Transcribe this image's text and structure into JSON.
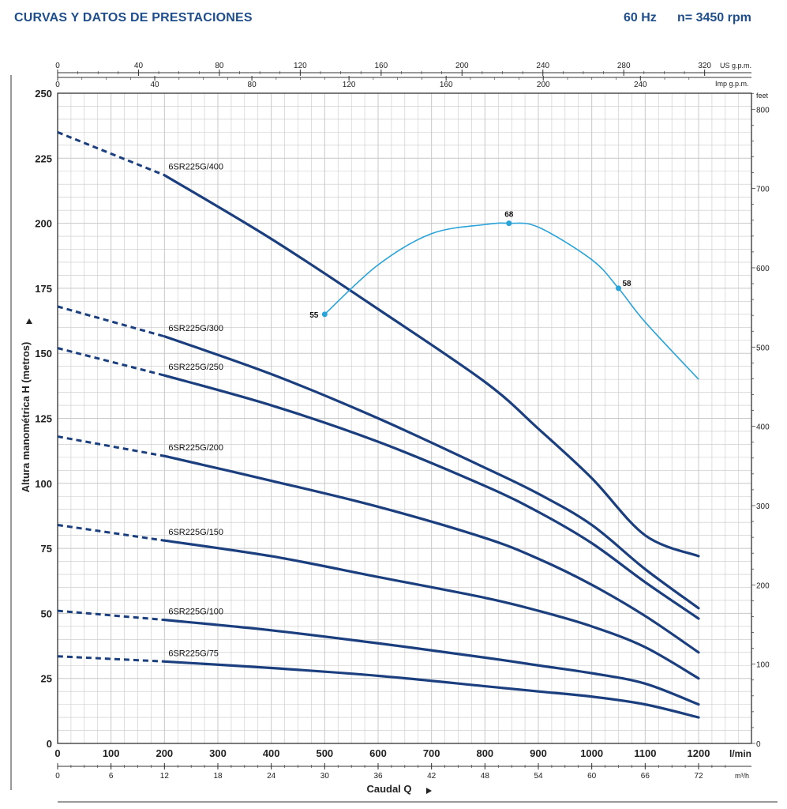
{
  "header": {
    "title": "CURVAS Y DATOS DE PRESTACIONES",
    "frequency": "60 Hz",
    "speed": "n= 3450 rpm"
  },
  "chart_data": {
    "type": "line",
    "ylabel": "Altura manométrica H (metros)",
    "xlabel": "Caudal Q",
    "x_unit": "l/min",
    "xlim": [
      0,
      1200
    ],
    "ylim": [
      0,
      250
    ],
    "x_ticks": [
      0,
      100,
      200,
      300,
      400,
      500,
      600,
      700,
      800,
      900,
      1000,
      1100,
      1200
    ],
    "y_ticks": [
      0,
      25,
      50,
      75,
      100,
      125,
      150,
      175,
      200,
      225,
      250
    ],
    "secondary_axes": {
      "top_us_gpm": {
        "unit": "US g.p.m.",
        "ticks": [
          0,
          40,
          80,
          120,
          160,
          200,
          240,
          280,
          320
        ]
      },
      "top_imp_gpm": {
        "unit": "Imp g.p.m.",
        "ticks": [
          0,
          40,
          80,
          120,
          160,
          200,
          240
        ]
      },
      "bottom_m3h": {
        "unit": "m³/h",
        "ticks": [
          0,
          6,
          12,
          18,
          24,
          30,
          36,
          42,
          48,
          54,
          60,
          66,
          72
        ]
      },
      "right_feet": {
        "unit": "feet",
        "ticks": [
          0,
          100,
          200,
          300,
          400,
          500,
          600,
          700,
          800
        ]
      }
    },
    "series": [
      {
        "name": "6SR225G/400",
        "dashed_until": 200,
        "x": [
          0,
          200,
          400,
          600,
          800,
          900,
          1000,
          1100,
          1200
        ],
        "y": [
          235,
          218.5,
          194,
          167,
          139,
          121,
          102,
          80,
          72
        ]
      },
      {
        "name": "6SR225G/300",
        "dashed_until": 200,
        "x": [
          0,
          200,
          400,
          600,
          800,
          900,
          1000,
          1100,
          1200
        ],
        "y": [
          168,
          156.5,
          142,
          125,
          106,
          96,
          84,
          67,
          52
        ]
      },
      {
        "name": "6SR225G/250",
        "dashed_until": 200,
        "x": [
          0,
          200,
          400,
          600,
          800,
          900,
          1000,
          1100,
          1200
        ],
        "y": [
          152,
          141.5,
          130,
          116,
          99,
          89,
          77,
          62,
          48
        ]
      },
      {
        "name": "6SR225G/200",
        "dashed_until": 200,
        "x": [
          0,
          200,
          400,
          600,
          800,
          900,
          1000,
          1100,
          1200
        ],
        "y": [
          118,
          110.5,
          101,
          91,
          79,
          71,
          61,
          49,
          35
        ]
      },
      {
        "name": "6SR225G/150",
        "dashed_until": 200,
        "x": [
          0,
          200,
          400,
          600,
          800,
          900,
          1000,
          1100,
          1200
        ],
        "y": [
          84,
          78,
          72,
          64,
          56,
          51,
          45,
          37,
          25
        ]
      },
      {
        "name": "6SR225G/100",
        "dashed_until": 200,
        "x": [
          0,
          200,
          400,
          600,
          800,
          900,
          1000,
          1100,
          1200
        ],
        "y": [
          51,
          47.5,
          43.5,
          38.5,
          33,
          30,
          27,
          23,
          15
        ]
      },
      {
        "name": "6SR225G/75",
        "dashed_until": 200,
        "x": [
          0,
          200,
          400,
          600,
          800,
          900,
          1000,
          1100,
          1200
        ],
        "y": [
          33.5,
          31.5,
          29,
          26,
          22,
          20,
          18,
          15,
          10
        ]
      }
    ],
    "efficiency_curve": {
      "x": [
        500,
        600,
        700,
        800,
        845,
        900,
        1000,
        1050,
        1100,
        1200
      ],
      "y": [
        165,
        184,
        196,
        199.5,
        200,
        198.5,
        186,
        175,
        162,
        140
      ],
      "labelled_points": [
        {
          "x": 500,
          "y": 165,
          "label": "55"
        },
        {
          "x": 845,
          "y": 200,
          "label": "68"
        },
        {
          "x": 1050,
          "y": 175,
          "label": "58"
        }
      ]
    },
    "colors": {
      "curves": "#1b3f7e",
      "efficiency": "#29a3d8",
      "grid": "#c8c8c8",
      "title": "#1f4e8c"
    },
    "grid": true
  }
}
